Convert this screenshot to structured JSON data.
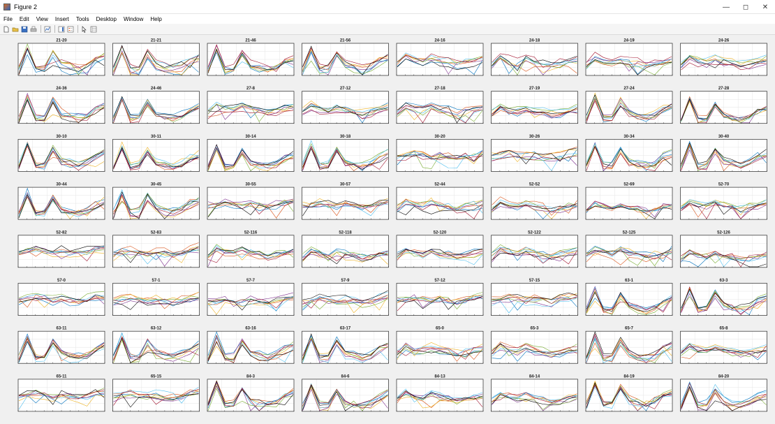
{
  "window": {
    "title": "Figure 2",
    "minimize_label": "—",
    "maximize_label": "◻",
    "close_label": "✕"
  },
  "menu": [
    "File",
    "Edit",
    "View",
    "Insert",
    "Tools",
    "Desktop",
    "Window",
    "Help"
  ],
  "toolbar": {
    "buttons": [
      {
        "name": "new-figure",
        "icon": "new-file-icon"
      },
      {
        "name": "open-file",
        "icon": "folder-open-icon"
      },
      {
        "name": "save-figure",
        "icon": "save-icon"
      },
      {
        "name": "print-figure",
        "icon": "print-icon"
      },
      {
        "name": "link-plot",
        "icon": "link-plot-icon"
      },
      {
        "name": "insert-colorbar",
        "icon": "colorbar-icon"
      },
      {
        "name": "insert-legend",
        "icon": "legend-icon"
      },
      {
        "name": "edit-plot",
        "icon": "arrow-cursor-icon"
      },
      {
        "name": "property-inspector",
        "icon": "property-inspector-icon"
      }
    ]
  },
  "chart_data": {
    "type": "line",
    "layout": {
      "rows": 8,
      "cols": 8
    },
    "series_colors": [
      "#0072bd",
      "#d95319",
      "#edb120",
      "#7e2f8e",
      "#77ac30",
      "#4dbeee",
      "#a2142f",
      "#000000"
    ],
    "grid": true,
    "shape_profiles": {
      "A": [
        0.15,
        0.82,
        0.18,
        0.2,
        0.68,
        0.32,
        0.24,
        0.2,
        0.27,
        0.45,
        0.55
      ],
      "B": [
        0.32,
        0.55,
        0.45,
        0.4,
        0.5,
        0.42,
        0.38,
        0.3,
        0.35,
        0.42,
        0.48
      ],
      "C": [
        0.45,
        0.5,
        0.55,
        0.5,
        0.45,
        0.5,
        0.45,
        0.42,
        0.48,
        0.55,
        0.6
      ]
    },
    "subplots": [
      {
        "title": "21-20",
        "shape": "A"
      },
      {
        "title": "21-21",
        "shape": "A"
      },
      {
        "title": "21-46",
        "shape": "A"
      },
      {
        "title": "21-56",
        "shape": "A"
      },
      {
        "title": "24-16",
        "shape": "B"
      },
      {
        "title": "24-18",
        "shape": "B"
      },
      {
        "title": "24-19",
        "shape": "B"
      },
      {
        "title": "24-26",
        "shape": "B"
      },
      {
        "title": "24-36",
        "shape": "A"
      },
      {
        "title": "24-46",
        "shape": "A"
      },
      {
        "title": "27-8",
        "shape": "B"
      },
      {
        "title": "27-12",
        "shape": "B"
      },
      {
        "title": "27-18",
        "shape": "B"
      },
      {
        "title": "27-19",
        "shape": "B"
      },
      {
        "title": "27-24",
        "shape": "A"
      },
      {
        "title": "27-28",
        "shape": "A"
      },
      {
        "title": "30-10",
        "shape": "A"
      },
      {
        "title": "30-11",
        "shape": "A"
      },
      {
        "title": "30-14",
        "shape": "A"
      },
      {
        "title": "30-18",
        "shape": "A"
      },
      {
        "title": "30-20",
        "shape": "C"
      },
      {
        "title": "30-26",
        "shape": "C"
      },
      {
        "title": "30-34",
        "shape": "A"
      },
      {
        "title": "30-40",
        "shape": "A"
      },
      {
        "title": "30-44",
        "shape": "A"
      },
      {
        "title": "30-45",
        "shape": "A"
      },
      {
        "title": "30-55",
        "shape": "C"
      },
      {
        "title": "30-57",
        "shape": "C"
      },
      {
        "title": "52-44",
        "shape": "B"
      },
      {
        "title": "52-52",
        "shape": "B"
      },
      {
        "title": "52-69",
        "shape": "B"
      },
      {
        "title": "52-70",
        "shape": "B"
      },
      {
        "title": "52-82",
        "shape": "C"
      },
      {
        "title": "52-83",
        "shape": "C"
      },
      {
        "title": "52-116",
        "shape": "B"
      },
      {
        "title": "52-118",
        "shape": "B"
      },
      {
        "title": "52-120",
        "shape": "B"
      },
      {
        "title": "52-122",
        "shape": "B"
      },
      {
        "title": "52-125",
        "shape": "B"
      },
      {
        "title": "52-126",
        "shape": "B"
      },
      {
        "title": "57-0",
        "shape": "C"
      },
      {
        "title": "57-1",
        "shape": "C"
      },
      {
        "title": "57-7",
        "shape": "C"
      },
      {
        "title": "57-9",
        "shape": "C"
      },
      {
        "title": "57-12",
        "shape": "C"
      },
      {
        "title": "57-15",
        "shape": "C"
      },
      {
        "title": "63-1",
        "shape": "A"
      },
      {
        "title": "63-3",
        "shape": "A"
      },
      {
        "title": "63-11",
        "shape": "A"
      },
      {
        "title": "63-12",
        "shape": "A"
      },
      {
        "title": "63-16",
        "shape": "A"
      },
      {
        "title": "63-17",
        "shape": "A"
      },
      {
        "title": "65-0",
        "shape": "B"
      },
      {
        "title": "65-3",
        "shape": "B"
      },
      {
        "title": "65-7",
        "shape": "A"
      },
      {
        "title": "65-8",
        "shape": "B"
      },
      {
        "title": "65-11",
        "shape": "C"
      },
      {
        "title": "65-15",
        "shape": "C"
      },
      {
        "title": "84-3",
        "shape": "A"
      },
      {
        "title": "84-6",
        "shape": "A"
      },
      {
        "title": "84-13",
        "shape": "B"
      },
      {
        "title": "84-14",
        "shape": "B"
      },
      {
        "title": "84-19",
        "shape": "A"
      },
      {
        "title": "84-20",
        "shape": "A"
      }
    ]
  }
}
